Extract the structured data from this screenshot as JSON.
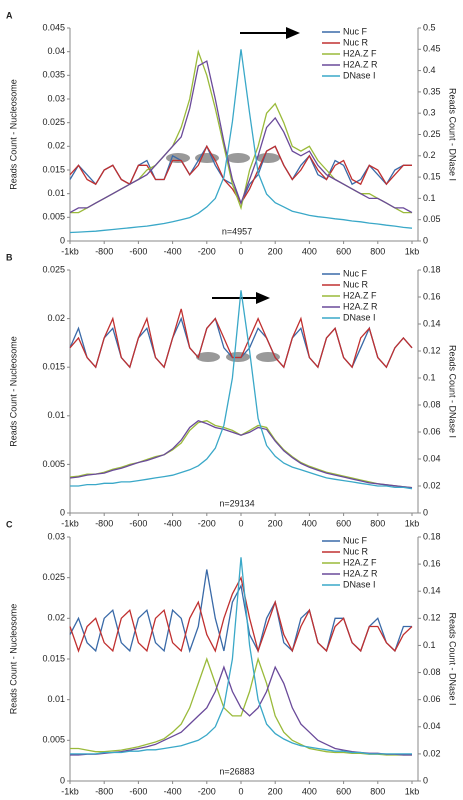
{
  "chart_data": [
    {
      "type": "line",
      "panel_label": "A",
      "annotation": "n=4957",
      "ylabel": "Reads Count - Nucleosome",
      "y2label": "Reads Count - DNase I",
      "x": [
        -1000,
        -950,
        -900,
        -850,
        -800,
        -750,
        -700,
        -650,
        -600,
        -550,
        -500,
        -450,
        -400,
        -350,
        -300,
        -250,
        -200,
        -150,
        -100,
        -50,
        0,
        50,
        100,
        150,
        200,
        250,
        300,
        350,
        400,
        450,
        500,
        550,
        600,
        650,
        700,
        750,
        800,
        850,
        900,
        950,
        1000
      ],
      "xlim": [
        -1000,
        1000
      ],
      "xticks": [
        {
          "value": -1000,
          "label": "-1kb"
        },
        -800,
        -600,
        -400,
        -200,
        0,
        200,
        400,
        600,
        800,
        {
          "value": 1000,
          "label": "1kb"
        }
      ],
      "ylim": [
        0,
        0.045
      ],
      "yticks": [
        0,
        0.005,
        0.01,
        0.015,
        0.02,
        0.025,
        0.03,
        0.035,
        0.04,
        0.045
      ],
      "y2lim": [
        0,
        0.5
      ],
      "y2ticks": [
        0,
        0.05,
        0.1,
        0.15,
        0.2,
        0.25,
        0.3,
        0.35,
        0.4,
        0.45,
        0.5
      ],
      "series": [
        {
          "name": "Nuc F",
          "color": "#3a6aa8",
          "values": [
            0.013,
            0.016,
            0.014,
            0.012,
            0.015,
            0.016,
            0.013,
            0.012,
            0.016,
            0.017,
            0.013,
            0.013,
            0.018,
            0.017,
            0.014,
            0.017,
            0.02,
            0.016,
            0.013,
            0.012,
            0.008,
            0.012,
            0.014,
            0.019,
            0.02,
            0.016,
            0.013,
            0.016,
            0.018,
            0.014,
            0.013,
            0.017,
            0.016,
            0.012,
            0.013,
            0.016,
            0.014,
            0.012,
            0.015,
            0.016,
            0.016
          ]
        },
        {
          "name": "Nuc R",
          "color": "#c03030",
          "values": [
            0.014,
            0.016,
            0.013,
            0.012,
            0.015,
            0.016,
            0.013,
            0.012,
            0.016,
            0.016,
            0.013,
            0.013,
            0.017,
            0.017,
            0.014,
            0.016,
            0.02,
            0.017,
            0.013,
            0.011,
            0.008,
            0.011,
            0.015,
            0.019,
            0.02,
            0.016,
            0.013,
            0.015,
            0.018,
            0.015,
            0.013,
            0.016,
            0.017,
            0.013,
            0.012,
            0.016,
            0.015,
            0.012,
            0.014,
            0.016,
            0.016
          ]
        },
        {
          "name": "H2A.Z F",
          "color": "#9aba3a",
          "values": [
            0.006,
            0.006,
            0.007,
            0.008,
            0.009,
            0.01,
            0.011,
            0.012,
            0.013,
            0.015,
            0.016,
            0.018,
            0.02,
            0.024,
            0.03,
            0.04,
            0.035,
            0.028,
            0.02,
            0.012,
            0.007,
            0.015,
            0.02,
            0.027,
            0.029,
            0.025,
            0.02,
            0.019,
            0.02,
            0.017,
            0.015,
            0.013,
            0.012,
            0.011,
            0.01,
            0.01,
            0.009,
            0.008,
            0.007,
            0.006,
            0.006
          ]
        },
        {
          "name": "H2A.Z R",
          "color": "#6a4a9a",
          "values": [
            0.006,
            0.007,
            0.007,
            0.008,
            0.009,
            0.01,
            0.011,
            0.012,
            0.013,
            0.014,
            0.016,
            0.018,
            0.02,
            0.022,
            0.028,
            0.037,
            0.038,
            0.03,
            0.021,
            0.013,
            0.008,
            0.013,
            0.018,
            0.024,
            0.026,
            0.023,
            0.019,
            0.018,
            0.019,
            0.016,
            0.014,
            0.013,
            0.012,
            0.011,
            0.01,
            0.009,
            0.009,
            0.008,
            0.007,
            0.007,
            0.006
          ]
        },
        {
          "name": "DNase I",
          "color": "#3aa8c8",
          "axis": "y2",
          "values": [
            0.02,
            0.021,
            0.022,
            0.023,
            0.025,
            0.027,
            0.029,
            0.031,
            0.033,
            0.035,
            0.038,
            0.041,
            0.045,
            0.05,
            0.055,
            0.065,
            0.08,
            0.1,
            0.15,
            0.28,
            0.45,
            0.3,
            0.16,
            0.11,
            0.09,
            0.08,
            0.07,
            0.065,
            0.06,
            0.057,
            0.055,
            0.052,
            0.05,
            0.047,
            0.045,
            0.042,
            0.04,
            0.037,
            0.035,
            0.032,
            0.03
          ]
        }
      ]
    },
    {
      "type": "line",
      "panel_label": "B",
      "annotation": "n=29134",
      "ylabel": "Reads Count - Nucleosome",
      "y2label": "Reads Count - DNase I",
      "x": [
        -1000,
        -950,
        -900,
        -850,
        -800,
        -750,
        -700,
        -650,
        -600,
        -550,
        -500,
        -450,
        -400,
        -350,
        -300,
        -250,
        -200,
        -150,
        -100,
        -50,
        0,
        50,
        100,
        150,
        200,
        250,
        300,
        350,
        400,
        450,
        500,
        550,
        600,
        650,
        700,
        750,
        800,
        850,
        900,
        950,
        1000
      ],
      "xlim": [
        -1000,
        1000
      ],
      "xticks": [
        {
          "value": -1000,
          "label": "-1kb"
        },
        -800,
        -600,
        -400,
        -200,
        0,
        200,
        400,
        600,
        800,
        {
          "value": 1000,
          "label": "1kb"
        }
      ],
      "ylim": [
        0,
        0.025
      ],
      "yticks": [
        0,
        0.005,
        0.01,
        0.015,
        0.02,
        0.025
      ],
      "y2lim": [
        0,
        0.18
      ],
      "y2ticks": [
        0,
        0.02,
        0.04,
        0.06,
        0.08,
        0.1,
        0.12,
        0.14,
        0.16,
        0.18
      ],
      "series": [
        {
          "name": "Nuc F",
          "color": "#3a6aa8",
          "values": [
            0.017,
            0.019,
            0.016,
            0.015,
            0.018,
            0.019,
            0.016,
            0.015,
            0.018,
            0.019,
            0.016,
            0.015,
            0.018,
            0.02,
            0.017,
            0.016,
            0.019,
            0.02,
            0.017,
            0.016,
            0.016,
            0.017,
            0.019,
            0.018,
            0.016,
            0.015,
            0.018,
            0.019,
            0.016,
            0.015,
            0.018,
            0.019,
            0.016,
            0.015,
            0.017,
            0.019,
            0.016,
            0.015,
            0.017,
            0.018,
            0.017
          ]
        },
        {
          "name": "Nuc R",
          "color": "#c03030",
          "values": [
            0.017,
            0.018,
            0.016,
            0.015,
            0.018,
            0.02,
            0.016,
            0.015,
            0.018,
            0.02,
            0.016,
            0.015,
            0.018,
            0.021,
            0.017,
            0.016,
            0.019,
            0.02,
            0.018,
            0.016,
            0.016,
            0.018,
            0.02,
            0.018,
            0.016,
            0.015,
            0.018,
            0.02,
            0.016,
            0.015,
            0.018,
            0.019,
            0.016,
            0.015,
            0.018,
            0.019,
            0.016,
            0.015,
            0.017,
            0.018,
            0.017
          ]
        },
        {
          "name": "H2A.Z F",
          "color": "#9aba3a",
          "values": [
            0.0037,
            0.0038,
            0.004,
            0.004,
            0.0042,
            0.0045,
            0.0047,
            0.005,
            0.0052,
            0.0055,
            0.0058,
            0.006,
            0.0065,
            0.0072,
            0.0085,
            0.0093,
            0.0095,
            0.009,
            0.0088,
            0.0085,
            0.008,
            0.0085,
            0.009,
            0.0088,
            0.0075,
            0.0065,
            0.0058,
            0.0052,
            0.0048,
            0.0045,
            0.0042,
            0.004,
            0.0038,
            0.0036,
            0.0034,
            0.0032,
            0.003,
            0.0029,
            0.0028,
            0.0027,
            0.0026
          ]
        },
        {
          "name": "H2A.Z R",
          "color": "#6a4a9a",
          "values": [
            0.0036,
            0.0037,
            0.0039,
            0.004,
            0.0041,
            0.0044,
            0.0046,
            0.0049,
            0.0052,
            0.0054,
            0.0057,
            0.006,
            0.0066,
            0.0075,
            0.0088,
            0.0095,
            0.0092,
            0.0088,
            0.0086,
            0.0083,
            0.008,
            0.0083,
            0.0088,
            0.0086,
            0.0074,
            0.0064,
            0.0057,
            0.0051,
            0.0047,
            0.0044,
            0.0041,
            0.0039,
            0.0037,
            0.0035,
            0.0033,
            0.0031,
            0.003,
            0.0029,
            0.0028,
            0.0027,
            0.0026
          ]
        },
        {
          "name": "DNase I",
          "color": "#3aa8c8",
          "axis": "y2",
          "values": [
            0.02,
            0.02,
            0.021,
            0.021,
            0.022,
            0.022,
            0.023,
            0.023,
            0.024,
            0.025,
            0.026,
            0.027,
            0.028,
            0.03,
            0.032,
            0.035,
            0.04,
            0.048,
            0.065,
            0.1,
            0.165,
            0.12,
            0.07,
            0.05,
            0.042,
            0.037,
            0.034,
            0.032,
            0.03,
            0.028,
            0.026,
            0.025,
            0.024,
            0.023,
            0.022,
            0.021,
            0.02,
            0.02,
            0.019,
            0.019,
            0.018
          ]
        }
      ]
    },
    {
      "type": "line",
      "panel_label": "C",
      "annotation": "n=26883",
      "ylabel": "Reads Count - Nucleosome",
      "y2label": "Reads Count - DNase I",
      "x": [
        -1000,
        -950,
        -900,
        -850,
        -800,
        -750,
        -700,
        -650,
        -600,
        -550,
        -500,
        -450,
        -400,
        -350,
        -300,
        -250,
        -200,
        -150,
        -100,
        -50,
        0,
        50,
        100,
        150,
        200,
        250,
        300,
        350,
        400,
        450,
        500,
        550,
        600,
        650,
        700,
        750,
        800,
        850,
        900,
        950,
        1000
      ],
      "xlim": [
        -1000,
        1000
      ],
      "xticks": [
        {
          "value": -1000,
          "label": "-1kb"
        },
        -800,
        -600,
        -400,
        -200,
        0,
        200,
        400,
        600,
        800,
        {
          "value": 1000,
          "label": "1kb"
        }
      ],
      "ylim": [
        0,
        0.03
      ],
      "yticks": [
        0,
        0.005,
        0.01,
        0.015,
        0.02,
        0.025,
        0.03
      ],
      "y2lim": [
        0,
        0.18
      ],
      "y2ticks": [
        0,
        0.02,
        0.04,
        0.06,
        0.08,
        0.1,
        0.12,
        0.14,
        0.16,
        0.18
      ],
      "series": [
        {
          "name": "Nuc F",
          "color": "#3a6aa8",
          "values": [
            0.018,
            0.02,
            0.017,
            0.016,
            0.02,
            0.021,
            0.017,
            0.016,
            0.02,
            0.021,
            0.017,
            0.016,
            0.021,
            0.02,
            0.016,
            0.019,
            0.026,
            0.02,
            0.016,
            0.022,
            0.024,
            0.018,
            0.016,
            0.02,
            0.022,
            0.017,
            0.016,
            0.02,
            0.021,
            0.017,
            0.016,
            0.02,
            0.02,
            0.017,
            0.016,
            0.019,
            0.02,
            0.017,
            0.016,
            0.019,
            0.019
          ]
        },
        {
          "name": "Nuc R",
          "color": "#c03030",
          "values": [
            0.019,
            0.016,
            0.019,
            0.02,
            0.017,
            0.016,
            0.02,
            0.021,
            0.017,
            0.016,
            0.02,
            0.021,
            0.017,
            0.016,
            0.02,
            0.022,
            0.018,
            0.016,
            0.02,
            0.023,
            0.025,
            0.02,
            0.016,
            0.019,
            0.022,
            0.018,
            0.016,
            0.019,
            0.021,
            0.017,
            0.016,
            0.019,
            0.02,
            0.017,
            0.016,
            0.019,
            0.019,
            0.017,
            0.016,
            0.018,
            0.019
          ]
        },
        {
          "name": "H2A.Z F",
          "color": "#9aba3a",
          "values": [
            0.004,
            0.004,
            0.0038,
            0.0036,
            0.0036,
            0.0037,
            0.0038,
            0.004,
            0.0042,
            0.0045,
            0.0048,
            0.0052,
            0.006,
            0.007,
            0.009,
            0.012,
            0.015,
            0.012,
            0.009,
            0.008,
            0.008,
            0.011,
            0.015,
            0.012,
            0.008,
            0.006,
            0.005,
            0.0045,
            0.004,
            0.0038,
            0.0036,
            0.0035,
            0.0035,
            0.0034,
            0.0034,
            0.0033,
            0.0033,
            0.0032,
            0.0032,
            0.0032,
            0.0032
          ]
        },
        {
          "name": "H2A.Z R",
          "color": "#6a4a9a",
          "values": [
            0.0032,
            0.0032,
            0.0033,
            0.0033,
            0.0034,
            0.0035,
            0.0036,
            0.0038,
            0.004,
            0.0042,
            0.0045,
            0.005,
            0.0055,
            0.006,
            0.007,
            0.008,
            0.009,
            0.011,
            0.014,
            0.011,
            0.009,
            0.008,
            0.009,
            0.011,
            0.014,
            0.012,
            0.009,
            0.007,
            0.006,
            0.005,
            0.0045,
            0.004,
            0.0038,
            0.0036,
            0.0035,
            0.0034,
            0.0034,
            0.0033,
            0.0033,
            0.0032,
            0.0032
          ]
        },
        {
          "name": "DNase I",
          "color": "#3aa8c8",
          "axis": "y2",
          "values": [
            0.02,
            0.02,
            0.02,
            0.02,
            0.021,
            0.021,
            0.021,
            0.022,
            0.022,
            0.023,
            0.023,
            0.024,
            0.025,
            0.026,
            0.028,
            0.03,
            0.034,
            0.04,
            0.055,
            0.09,
            0.165,
            0.1,
            0.06,
            0.042,
            0.035,
            0.031,
            0.028,
            0.026,
            0.025,
            0.024,
            0.023,
            0.022,
            0.022,
            0.021,
            0.021,
            0.02,
            0.02,
            0.02,
            0.02,
            0.02,
            0.02
          ]
        }
      ]
    }
  ]
}
